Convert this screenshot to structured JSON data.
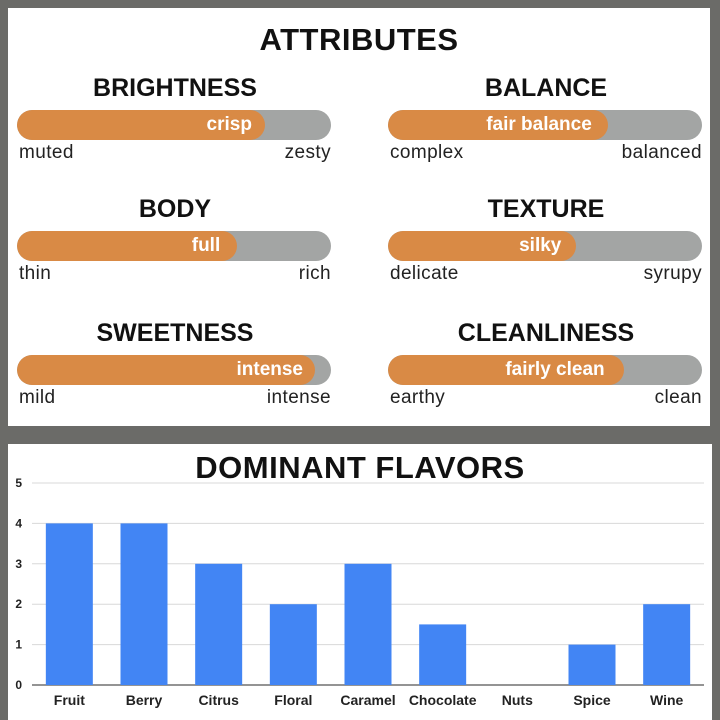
{
  "attributes": {
    "title": "ATTRIBUTES",
    "bar_colors": {
      "fill": "#d98a45",
      "track": "#a3a5a4"
    },
    "items": [
      {
        "name": "BRIGHTNESS",
        "value_label": "crisp",
        "level": 0.79,
        "low": "muted",
        "high": "zesty"
      },
      {
        "name": "BALANCE",
        "value_label": "fair balance",
        "level": 0.7,
        "low": "complex",
        "high": "balanced"
      },
      {
        "name": "BODY",
        "value_label": "full",
        "level": 0.7,
        "low": "thin",
        "high": "rich"
      },
      {
        "name": "TEXTURE",
        "value_label": "silky",
        "level": 0.6,
        "low": "delicate",
        "high": "syrupy"
      },
      {
        "name": "SWEETNESS",
        "value_label": "intense",
        "level": 0.95,
        "low": "mild",
        "high": "intense"
      },
      {
        "name": "CLEANLINESS",
        "value_label": "fairly clean",
        "level": 0.75,
        "low": "earthy",
        "high": "clean"
      }
    ]
  },
  "chart_data": {
    "type": "bar",
    "title": "DOMINANT FLAVORS",
    "categories": [
      "Fruit",
      "Berry",
      "Citrus",
      "Floral",
      "Caramel",
      "Chocolate",
      "Nuts",
      "Spice",
      "Wine"
    ],
    "values": [
      4,
      4,
      3,
      2,
      3,
      1.5,
      0,
      1,
      2
    ],
    "yticks": [
      0,
      1,
      2,
      3,
      4,
      5
    ],
    "ylim": [
      0,
      5
    ],
    "grid": true,
    "bar_color": "#4285f4",
    "xlabel": "",
    "ylabel": ""
  }
}
